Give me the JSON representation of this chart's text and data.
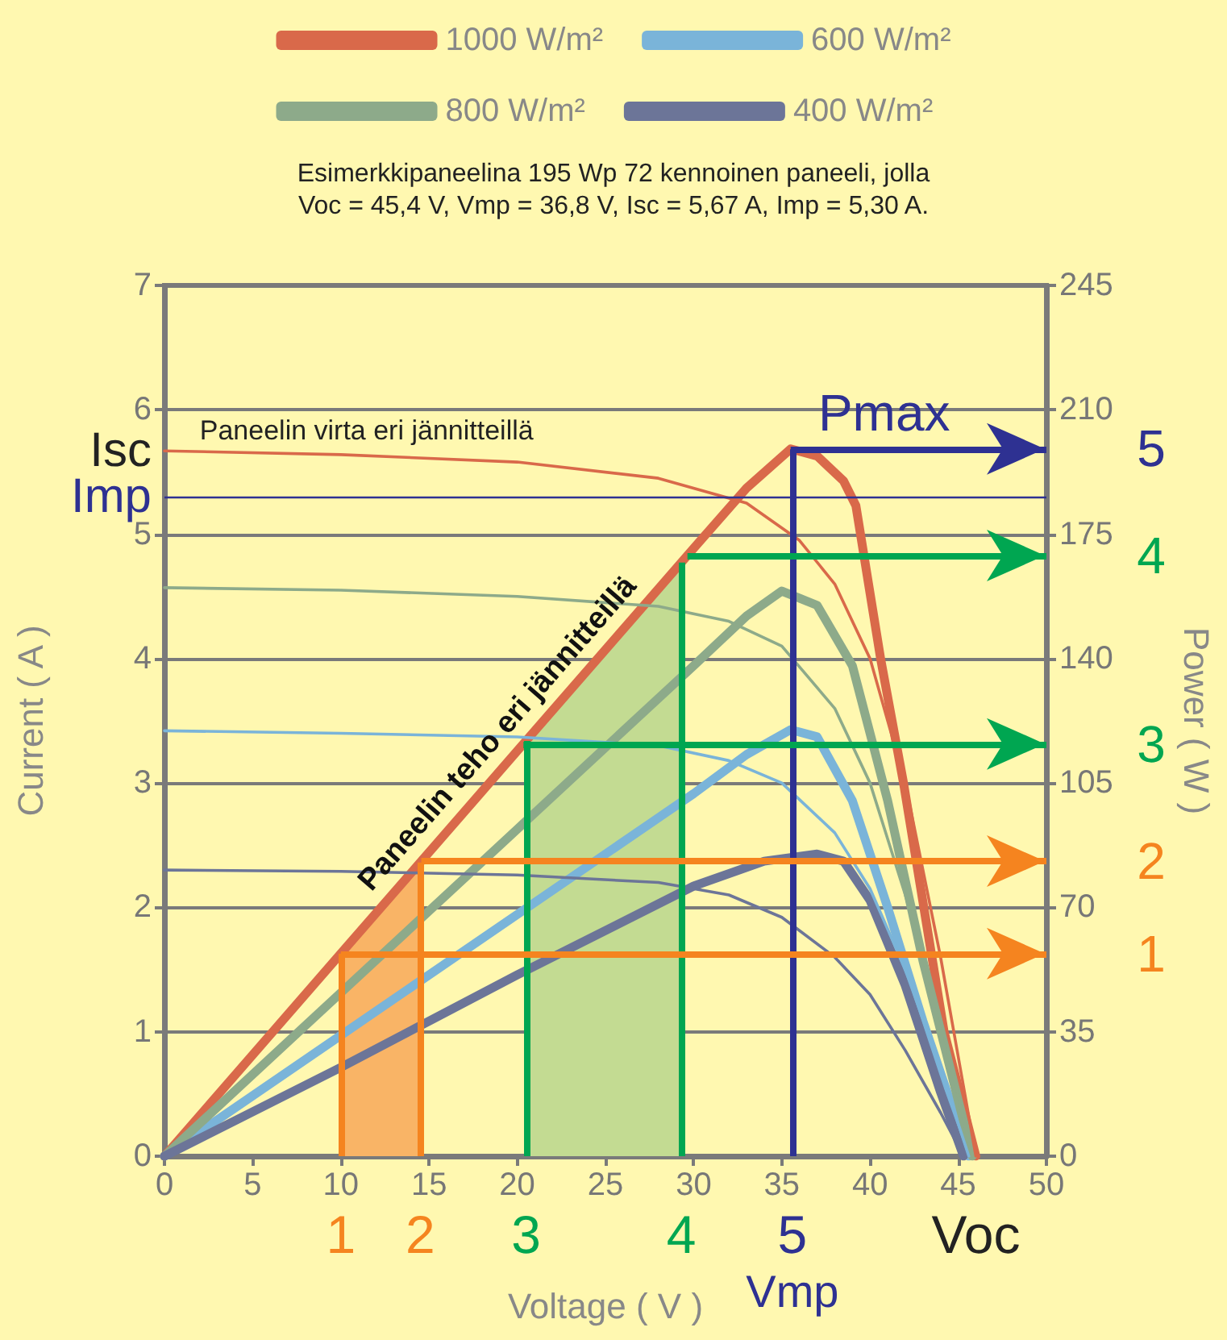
{
  "chart_data": {
    "type": "line",
    "title": "Esimerkkipaneelina 195 Wp 72 kennoinen paneeli, jolla",
    "subtitle": "Voc = 45,4 V, Vmp = 36,8 V, Isc = 5,67 A, Imp = 5,30 A.",
    "xlabel": "Voltage ( V )",
    "ylabel": "Current ( A )",
    "y2label": "Power ( W )",
    "xlim": [
      0,
      50
    ],
    "xticks": [
      0,
      5,
      10,
      15,
      20,
      25,
      30,
      35,
      40,
      45,
      50
    ],
    "ylim": [
      0,
      7
    ],
    "yticks": [
      0,
      1,
      2,
      3,
      4,
      5,
      6,
      7
    ],
    "y2lim": [
      0,
      245
    ],
    "y2ticks": [
      0,
      35,
      70,
      105,
      140,
      175,
      210,
      245
    ],
    "grid": "y",
    "legend": "top",
    "marker": "none",
    "series": [
      {
        "name": "1000 W/m²",
        "color": "#d9694a",
        "axis": "y2",
        "x": [
          0,
          10,
          20,
          30,
          33,
          35.5,
          37,
          38.5,
          39.2,
          40.6,
          41.9,
          44.2,
          46
        ],
        "values": [
          0,
          57,
          114,
          171,
          188,
          199,
          197,
          190,
          183,
          140,
          105,
          35,
          0
        ]
      },
      {
        "name": "600 W/m²",
        "color": "#7ab4d9",
        "axis": "y2",
        "x": [
          0,
          10,
          20,
          30,
          33,
          35.5,
          37,
          39,
          41,
          43,
          45.6
        ],
        "values": [
          0,
          34,
          68,
          102,
          113,
          120,
          118,
          100,
          70,
          38,
          0
        ]
      },
      {
        "name": "800 W/m²",
        "color": "#8daa8a",
        "axis": "y2",
        "x": [
          0,
          10,
          20,
          30,
          33,
          35,
          37,
          39,
          41,
          43,
          45.8
        ],
        "values": [
          0,
          46,
          92,
          138,
          152,
          159,
          155,
          138,
          100,
          55,
          0
        ]
      },
      {
        "name": "400 W/m²",
        "color": "#6c7598",
        "axis": "y2",
        "x": [
          0,
          10,
          20,
          30,
          34,
          37,
          38.5,
          40,
          42,
          44,
          45.3
        ],
        "values": [
          0,
          25,
          51,
          76,
          83,
          85,
          83,
          72,
          48,
          18,
          0
        ]
      },
      {
        "color": "#d9694a",
        "x": [
          0,
          10,
          20,
          28,
          33,
          36,
          38,
          40,
          42,
          44,
          46
        ],
        "values": [
          5.67,
          5.64,
          5.58,
          5.45,
          5.25,
          4.95,
          4.6,
          4.0,
          3.0,
          1.6,
          0
        ]
      },
      {
        "color": "#7ab4d9",
        "x": [
          0,
          10,
          20,
          28,
          32,
          35,
          38,
          40,
          42,
          44,
          45.6
        ],
        "values": [
          3.42,
          3.4,
          3.37,
          3.3,
          3.18,
          3.0,
          2.6,
          2.15,
          1.5,
          0.7,
          0
        ]
      },
      {
        "color": "#8daa8a",
        "x": [
          0,
          10,
          20,
          28,
          32,
          35,
          38,
          40,
          42,
          44,
          45.8
        ],
        "values": [
          4.57,
          4.55,
          4.5,
          4.42,
          4.3,
          4.1,
          3.6,
          3.0,
          2.1,
          1.1,
          0
        ]
      },
      {
        "color": "#6c7598",
        "x": [
          0,
          10,
          20,
          28,
          32,
          35,
          38,
          40,
          42,
          44,
          45.3
        ],
        "values": [
          2.3,
          2.29,
          2.26,
          2.2,
          2.1,
          1.92,
          1.6,
          1.3,
          0.85,
          0.35,
          0
        ]
      }
    ],
    "bands": [
      {
        "axis": "x",
        "from": 10,
        "to": 14.5,
        "color": "#f9b466"
      },
      {
        "axis": "x",
        "from": 20.5,
        "to": 29.3,
        "color": "#c3db92"
      }
    ],
    "ref_lines": [
      {
        "axis": "x",
        "value": 10,
        "color": "#f5841f"
      },
      {
        "axis": "x",
        "value": 14.5,
        "color": "#f5841f"
      },
      {
        "axis": "x",
        "value": 20.5,
        "color": "#00a651"
      },
      {
        "axis": "x",
        "value": 29.3,
        "color": "#00a651"
      },
      {
        "axis": "x",
        "value": 35.6,
        "color": "#2e3192"
      },
      {
        "axis": "y2",
        "value": 57,
        "color": "#f5841f"
      },
      {
        "axis": "y2",
        "value": 83,
        "color": "#f5841f"
      },
      {
        "axis": "y2",
        "value": 116,
        "color": "#00a651"
      },
      {
        "axis": "y2",
        "value": 169,
        "color": "#00a651"
      },
      {
        "axis": "y2",
        "value": 199,
        "color": "#2e3192"
      },
      {
        "axis": "y",
        "value": 5.3,
        "label": "Imp",
        "color": "#2e3192"
      }
    ],
    "annotations": [
      {
        "text": "Isc",
        "x": 0,
        "y": 5.67
      },
      {
        "text": "Paneelin virta eri jännitteillä",
        "x": 2,
        "y": 5.67
      },
      {
        "text": "Paneelin teho eri jännitteillä",
        "x": 20,
        "y": 3.26
      },
      {
        "text": "Pmax",
        "x": 35.6,
        "y": 5.69
      },
      {
        "text": "1",
        "x": 10,
        "y": 0
      },
      {
        "text": "2",
        "x": 14.5,
        "y": 0
      },
      {
        "text": "3",
        "x": 20.5,
        "y": 0
      },
      {
        "text": "4",
        "x": 29.3,
        "y": 0
      },
      {
        "text": "5",
        "x": 35.6,
        "y": 0
      },
      {
        "text": "1",
        "x": 50,
        "y": 1.63
      },
      {
        "text": "2",
        "x": 50,
        "y": 2.37
      },
      {
        "text": "3",
        "x": 50,
        "y": 3.31
      },
      {
        "text": "4",
        "x": 50,
        "y": 4.83
      },
      {
        "text": "5",
        "x": 50,
        "y": 5.69
      },
      {
        "text": "Voc",
        "x": 46,
        "y": 0
      },
      {
        "text": "Vmp",
        "x": 35.6,
        "y": 0
      }
    ]
  }
}
